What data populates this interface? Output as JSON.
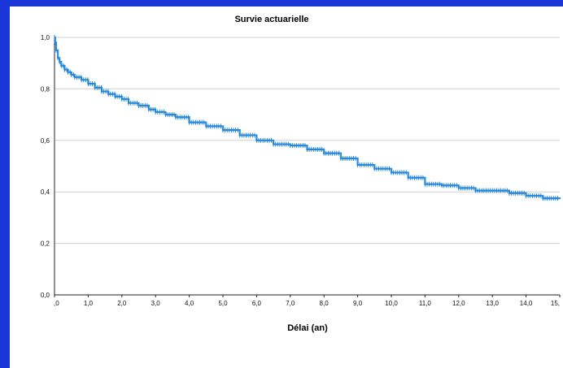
{
  "chart_data": {
    "type": "line",
    "title": "Survie actuarielle",
    "xlabel": "Délai (an)",
    "ylabel": "",
    "xlim": [
      0,
      15
    ],
    "ylim": [
      0,
      1
    ],
    "x_ticks": [
      ",0",
      "1,0",
      "2,0",
      "3,0",
      "4,0",
      "5,0",
      "6,0",
      "7,0",
      "8,0",
      "9,0",
      "10,0",
      "11,0",
      "12,0",
      "13,0",
      "14,0",
      "15,"
    ],
    "y_ticks": [
      "0,0",
      "0,2",
      "0,4",
      "0,6",
      "0,8",
      "1,0"
    ],
    "grid": "horizontal",
    "colors": {
      "line": "#2a8fe0",
      "censor": "#1f7fd6",
      "grid": "#d0d0d0",
      "background": "#1a35d8"
    },
    "series": [
      {
        "x": [
          0,
          0.02,
          0.05,
          0.1,
          0.15,
          0.2,
          0.3,
          0.4,
          0.5,
          0.6,
          0.8,
          1.0,
          1.2,
          1.4,
          1.6,
          1.8,
          2.0,
          2.2,
          2.5,
          2.8,
          3.0,
          3.3,
          3.6,
          4.0,
          4.5,
          5.0,
          5.5,
          6.0,
          6.5,
          7.0,
          7.5,
          8.0,
          8.5,
          9.0,
          9.5,
          10.0,
          10.5,
          11.0,
          11.5,
          12.0,
          12.5,
          13.0,
          13.5,
          14.0,
          14.5,
          15.0
        ],
        "y": [
          1.0,
          0.98,
          0.95,
          0.92,
          0.905,
          0.89,
          0.875,
          0.865,
          0.855,
          0.845,
          0.835,
          0.82,
          0.805,
          0.79,
          0.78,
          0.77,
          0.76,
          0.745,
          0.735,
          0.72,
          0.71,
          0.7,
          0.69,
          0.67,
          0.655,
          0.64,
          0.62,
          0.6,
          0.585,
          0.58,
          0.565,
          0.55,
          0.53,
          0.505,
          0.49,
          0.475,
          0.455,
          0.43,
          0.425,
          0.415,
          0.405,
          0.405,
          0.395,
          0.385,
          0.375,
          0.372
        ]
      }
    ]
  }
}
